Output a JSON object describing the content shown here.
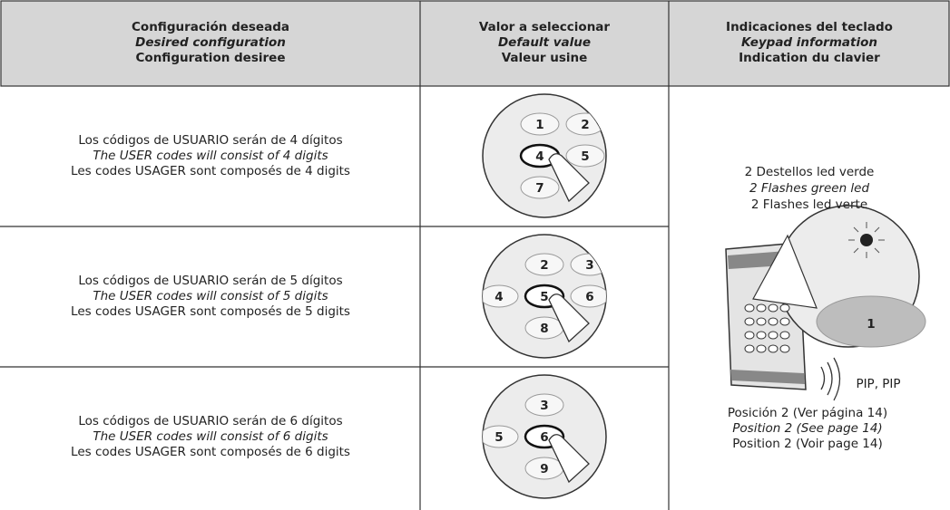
{
  "header": {
    "columns": [
      {
        "lines": [
          "Configuración deseada",
          "Desired configuration",
          "Configuration desiree"
        ]
      },
      {
        "lines": [
          "Valor a seleccionar",
          "Default value",
          "Valeur usine"
        ]
      },
      {
        "lines": [
          "Indicaciones del teclado",
          "Keypad information",
          "Indication du clavier"
        ]
      }
    ]
  },
  "rows": [
    {
      "lines": [
        "Los códigos de USUARIO serán de 4 dígitos",
        "The USER codes will consist of 4 digits",
        "Les codes USAGER sont composés de 4 digits"
      ],
      "keys": [
        "1",
        "2",
        "4",
        "5",
        "7"
      ]
    },
    {
      "lines": [
        "Los códigos de USUARIO serán de 5 dígitos",
        "The USER codes will consist of 5 digits",
        "Les codes  USAGER sont composés de 5 digits"
      ],
      "keys": [
        "2",
        "3",
        "4",
        "5",
        "6",
        "8"
      ]
    },
    {
      "lines": [
        "Los códigos de USUARIO serán de 6 dígitos",
        "The USER codes will consist of 6 digits",
        "Les codes  USAGER sont composés de 6 digits"
      ],
      "keys": [
        "3",
        "5",
        "6",
        "9"
      ]
    }
  ],
  "indication": {
    "flash_lines": [
      "2 Destellos led verde",
      "2 Flashes green led",
      "2 Flashes led verte"
    ],
    "key": "1",
    "sound": "PIP, PIP",
    "position_lines": [
      "Posición 2 (Ver página 14)",
      "Position 2 (See page 14)",
      "Position 2 (Voir page 14)"
    ]
  }
}
